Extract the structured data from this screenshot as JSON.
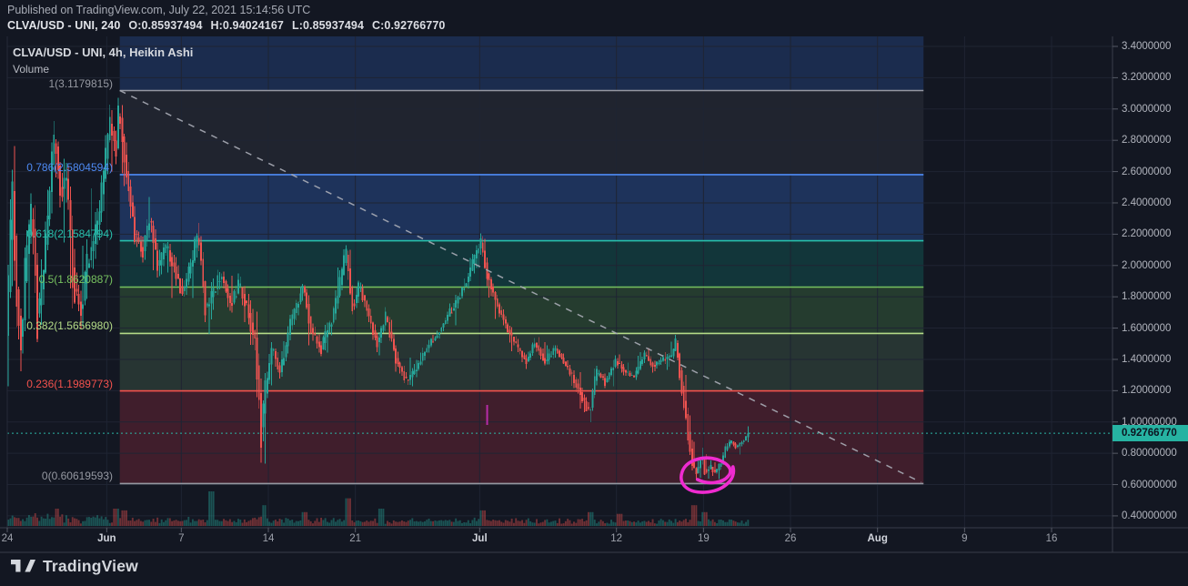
{
  "header": {
    "published": "Published on TradingView.com, July 22, 2021 15:14:56 UTC",
    "symbol": "CLVA/USD - UNI, 240",
    "ohlc": {
      "o": "O:0.85937494",
      "h": "H:0.94024167",
      "l": "L:0.85937494",
      "c": "C:0.92766770"
    }
  },
  "chart": {
    "title": "CLVA/USD - UNI, 4h, Heikin Ashi",
    "volume_label": "Volume"
  },
  "footer": {
    "brand": "TradingView"
  },
  "colors": {
    "bg": "#131722",
    "up": "#26a69a",
    "down": "#ef5350",
    "vol_up": "rgba(38,166,154,0.42)",
    "vol_down": "rgba(239,83,80,0.42)",
    "grid": "#1f2433",
    "pane_line": "#252a38",
    "axis_border": "#3a3e49",
    "tick_mark": "#565a66",
    "trend": "#a9acb6",
    "price_line": "#2cb7a6",
    "badge_bg": "#26b3a2",
    "badge_text": "#0c1420",
    "ellipse": "#ef2bd0",
    "small_tick": "#cc2fbe"
  },
  "chart_data": {
    "type": "candlestick",
    "style": "Heikin Ashi",
    "symbol": "CLVA/USD - UNI",
    "interval": "4h",
    "x_start_date": "2021-05-24",
    "x_range_days": [
      0,
      88.9
    ],
    "y_range": [
      0.324,
      3.464
    ],
    "y_ticks": [
      {
        "label": "3.4000000",
        "value": 3.4
      },
      {
        "label": "3.2000000",
        "value": 3.2
      },
      {
        "label": "3.0000000",
        "value": 3.0
      },
      {
        "label": "2.8000000",
        "value": 2.8
      },
      {
        "label": "2.6000000",
        "value": 2.6
      },
      {
        "label": "2.4000000",
        "value": 2.4
      },
      {
        "label": "2.2000000",
        "value": 2.2
      },
      {
        "label": "2.0000000",
        "value": 2.0
      },
      {
        "label": "1.8000000",
        "value": 1.8
      },
      {
        "label": "1.6000000",
        "value": 1.6
      },
      {
        "label": "1.4000000",
        "value": 1.4
      },
      {
        "label": "1.2000000",
        "value": 1.2
      },
      {
        "label": "1.00000000",
        "value": 1.0
      },
      {
        "label": "0.80000000",
        "value": 0.8
      },
      {
        "label": "0.60000000",
        "value": 0.6
      },
      {
        "label": "0.40000000",
        "value": 0.4
      }
    ],
    "x_ticks": [
      {
        "label": "24",
        "day": 0,
        "major": false
      },
      {
        "label": "Jun",
        "day": 8,
        "major": true
      },
      {
        "label": "7",
        "day": 14,
        "major": false
      },
      {
        "label": "14",
        "day": 21,
        "major": false
      },
      {
        "label": "21",
        "day": 28,
        "major": false
      },
      {
        "label": "Jul",
        "day": 38,
        "major": true
      },
      {
        "label": "12",
        "day": 49,
        "major": false
      },
      {
        "label": "19",
        "day": 56,
        "major": false
      },
      {
        "label": "26",
        "day": 63,
        "major": false
      },
      {
        "label": "Aug",
        "day": 70,
        "major": true
      },
      {
        "label": "9",
        "day": 77,
        "major": false
      },
      {
        "label": "16",
        "day": 84,
        "major": false
      }
    ],
    "last_price": {
      "label": "0.92766770",
      "value": 0.9276677
    },
    "fib": {
      "from_day": 9.05,
      "to_day": 73.7,
      "levels": [
        {
          "label": "1(3.1179815)",
          "price": 3.1179815,
          "color": "#9598a1"
        },
        {
          "label": "0.786(2.5804594)",
          "price": 2.5804594,
          "color": "#4e8bf5"
        },
        {
          "label": "0.618(2.1584794)",
          "price": 2.1584794,
          "color": "#27c0ac"
        },
        {
          "label": "0.5(1.8620887)",
          "price": 1.8620887,
          "color": "#76c15f"
        },
        {
          "label": "0.382(1.5656980)",
          "price": 1.565698,
          "color": "#b4db87"
        },
        {
          "label": "0.236(1.1989773)",
          "price": 1.1989773,
          "color": "#f4524d"
        },
        {
          "label": "0(0.60619593)",
          "price": 0.60619593,
          "color": "#9598a1"
        }
      ],
      "bands": [
        {
          "from": 3.464,
          "to": 3.1179815,
          "fill": "rgba(62,130,255,0.20)"
        },
        {
          "from": 3.1179815,
          "to": 2.5804594,
          "fill": "rgba(150,155,170,0.10)"
        },
        {
          "from": 2.5804594,
          "to": 2.1584794,
          "fill": "rgba(62,130,255,0.26)"
        },
        {
          "from": 2.1584794,
          "to": 1.8620887,
          "fill": "rgba(16,200,170,0.18)"
        },
        {
          "from": 1.8620887,
          "to": 1.565698,
          "fill": "rgba(110,210,100,0.20)"
        },
        {
          "from": 1.565698,
          "to": 1.1989773,
          "fill": "rgba(140,200,135,0.17)"
        },
        {
          "from": 1.1989773,
          "to": 0.60619593,
          "fill": "rgba(245,60,85,0.20)"
        }
      ]
    },
    "trendline": {
      "from_day": 9.05,
      "from_price": 3.118,
      "to_day": 73.5,
      "to_price": 0.615
    },
    "annotations": {
      "ellipse": {
        "day": 56.25,
        "price": 0.667
      },
      "small_tick": {
        "day": 38.6,
        "price_top": 1.109,
        "price_bottom": 0.981
      }
    },
    "price_path": [
      [
        0,
        1.55
      ],
      [
        0.25,
        2.1
      ],
      [
        0.5,
        2.6
      ],
      [
        0.8,
        1.75
      ],
      [
        1.2,
        1.5
      ],
      [
        1.6,
        2.1
      ],
      [
        2.1,
        2.35
      ],
      [
        2.5,
        1.62
      ],
      [
        3.0,
        2.0
      ],
      [
        3.5,
        2.55
      ],
      [
        3.9,
        2.88
      ],
      [
        4.3,
        2.45
      ],
      [
        4.8,
        2.6
      ],
      [
        5.4,
        1.85
      ],
      [
        6.0,
        1.72
      ],
      [
        6.6,
        2.05
      ],
      [
        7.2,
        2.2
      ],
      [
        7.8,
        2.55
      ],
      [
        8.3,
        2.95
      ],
      [
        8.8,
        2.7
      ],
      [
        9.05,
        3.1
      ],
      [
        9.3,
        2.8
      ],
      [
        9.7,
        2.55
      ],
      [
        10.3,
        2.18
      ],
      [
        11.0,
        2.1
      ],
      [
        11.5,
        2.32
      ],
      [
        12.2,
        1.95
      ],
      [
        12.8,
        2.12
      ],
      [
        13.5,
        1.98
      ],
      [
        14.2,
        1.82
      ],
      [
        15.0,
        2.05
      ],
      [
        15.4,
        2.23
      ],
      [
        16.0,
        1.7
      ],
      [
        16.6,
        1.82
      ],
      [
        17.3,
        1.95
      ],
      [
        18.0,
        1.74
      ],
      [
        18.7,
        1.88
      ],
      [
        19.4,
        1.72
      ],
      [
        20.0,
        1.52
      ],
      [
        20.5,
        0.92
      ],
      [
        20.8,
        1.18
      ],
      [
        21.3,
        1.5
      ],
      [
        22.0,
        1.3
      ],
      [
        22.7,
        1.6
      ],
      [
        23.4,
        1.75
      ],
      [
        23.8,
        1.9
      ],
      [
        24.5,
        1.58
      ],
      [
        25.3,
        1.46
      ],
      [
        26.2,
        1.66
      ],
      [
        27.0,
        1.95
      ],
      [
        27.3,
        2.1
      ],
      [
        27.8,
        1.72
      ],
      [
        28.4,
        1.88
      ],
      [
        29.2,
        1.65
      ],
      [
        29.8,
        1.5
      ],
      [
        30.5,
        1.68
      ],
      [
        31.3,
        1.4
      ],
      [
        32.2,
        1.25
      ],
      [
        33.0,
        1.35
      ],
      [
        33.8,
        1.48
      ],
      [
        34.6,
        1.56
      ],
      [
        35.5,
        1.68
      ],
      [
        36.3,
        1.78
      ],
      [
        37.2,
        1.95
      ],
      [
        37.9,
        2.1
      ],
      [
        38.15,
        2.16
      ],
      [
        38.6,
        1.95
      ],
      [
        39.3,
        1.78
      ],
      [
        40.2,
        1.6
      ],
      [
        41.0,
        1.48
      ],
      [
        41.8,
        1.38
      ],
      [
        42.5,
        1.52
      ],
      [
        43.3,
        1.38
      ],
      [
        44.2,
        1.48
      ],
      [
        45.0,
        1.35
      ],
      [
        45.8,
        1.25
      ],
      [
        46.5,
        1.12
      ],
      [
        46.9,
        1.05
      ],
      [
        47.4,
        1.33
      ],
      [
        48.2,
        1.25
      ],
      [
        49.0,
        1.4
      ],
      [
        49.7,
        1.32
      ],
      [
        50.5,
        1.28
      ],
      [
        51.3,
        1.44
      ],
      [
        52.0,
        1.36
      ],
      [
        52.8,
        1.4
      ],
      [
        53.5,
        1.42
      ],
      [
        53.85,
        1.52
      ],
      [
        54.2,
        1.28
      ],
      [
        54.7,
        1.0
      ],
      [
        55.1,
        0.72
      ],
      [
        55.5,
        0.66
      ],
      [
        55.9,
        0.8
      ],
      [
        56.2,
        0.67
      ],
      [
        56.6,
        0.72
      ],
      [
        57.0,
        0.67
      ],
      [
        57.5,
        0.74
      ],
      [
        57.9,
        0.85
      ],
      [
        58.3,
        0.88
      ],
      [
        58.7,
        0.83
      ],
      [
        59.1,
        0.87
      ],
      [
        59.45,
        0.9
      ],
      [
        59.62,
        0.9276677
      ]
    ],
    "volatility": [
      [
        0,
        0.3
      ],
      [
        2,
        0.32
      ],
      [
        4,
        0.3
      ],
      [
        6,
        0.25
      ],
      [
        9,
        0.2
      ],
      [
        10,
        0.16
      ],
      [
        12,
        0.14
      ],
      [
        14,
        0.12
      ],
      [
        16,
        0.14
      ],
      [
        19,
        0.1
      ],
      [
        20.4,
        0.3
      ],
      [
        21,
        0.12
      ],
      [
        24,
        0.1
      ],
      [
        27,
        0.12
      ],
      [
        29,
        0.09
      ],
      [
        32,
        0.08
      ],
      [
        35,
        0.07
      ],
      [
        38,
        0.09
      ],
      [
        40,
        0.08
      ],
      [
        44,
        0.06
      ],
      [
        47,
        0.08
      ],
      [
        50,
        0.05
      ],
      [
        53,
        0.045
      ],
      [
        54.8,
        0.13
      ],
      [
        55.6,
        0.07
      ],
      [
        57,
        0.05
      ],
      [
        58.5,
        0.035
      ],
      [
        59.6,
        0.03
      ]
    ],
    "volume_spikes": [
      [
        3.9,
        0.5
      ],
      [
        8.7,
        0.5
      ],
      [
        9.3,
        0.45
      ],
      [
        16.3,
        1.0
      ],
      [
        20.6,
        0.6
      ],
      [
        23.8,
        0.4
      ],
      [
        27.3,
        0.8
      ],
      [
        30.0,
        0.5
      ],
      [
        38.2,
        0.45
      ],
      [
        46.8,
        0.4
      ],
      [
        49.2,
        0.35
      ],
      [
        55.2,
        0.6
      ],
      [
        56.0,
        0.4
      ]
    ]
  }
}
